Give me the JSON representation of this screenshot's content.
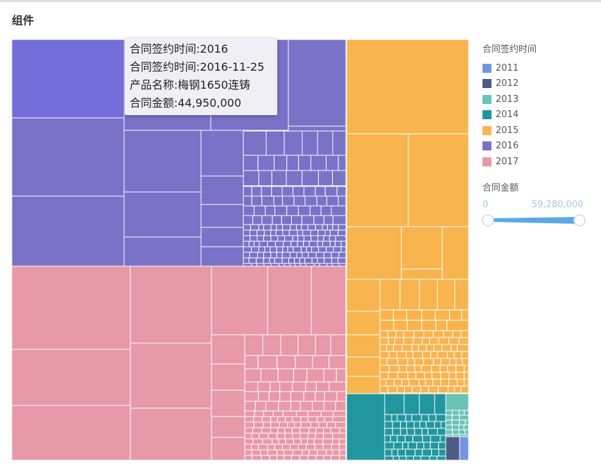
{
  "page_title": "组件",
  "tooltip": {
    "line1": "合同签约时间:2016",
    "line2": "合同签约时间:2016-11-25",
    "line3": "产品名称:梅钢1650连铸",
    "line4": "合同金额:44,950,000"
  },
  "legend": {
    "title": "合同签约时间",
    "items": [
      {
        "label": "2011",
        "color": "#7495e0"
      },
      {
        "label": "2012",
        "color": "#4b5c85"
      },
      {
        "label": "2013",
        "color": "#6bc2b8"
      },
      {
        "label": "2014",
        "color": "#22969f"
      },
      {
        "label": "2015",
        "color": "#f8b44f"
      },
      {
        "label": "2016",
        "color": "#7a72c7"
      },
      {
        "label": "2017",
        "color": "#e899a8"
      }
    ]
  },
  "range_filter": {
    "title": "合同金额",
    "min_label": "0",
    "max_label": "59,280,000",
    "min_value": 0,
    "max_value": 59280000,
    "slider_color": "#5aa9e6"
  },
  "chart_data": {
    "type": "treemap",
    "group_field": "合同签约时间",
    "value_field": "合同金额",
    "groups": [
      {
        "name": "2016",
        "color": "#7a72c7",
        "highlight_color": "#736ed9",
        "leaf_count": 130
      },
      {
        "name": "2017",
        "color": "#e899a8",
        "leaf_count": 150
      },
      {
        "name": "2015",
        "color": "#f8b44f",
        "leaf_count": 120
      },
      {
        "name": "2014",
        "color": "#22969f",
        "leaf_count": 60
      },
      {
        "name": "2013",
        "color": "#6bc2b8",
        "leaf_count": 12
      },
      {
        "name": "2012",
        "color": "#4b5c85",
        "leaf_count": 1
      },
      {
        "name": "2011",
        "color": "#7495e0",
        "leaf_count": 1
      }
    ]
  }
}
